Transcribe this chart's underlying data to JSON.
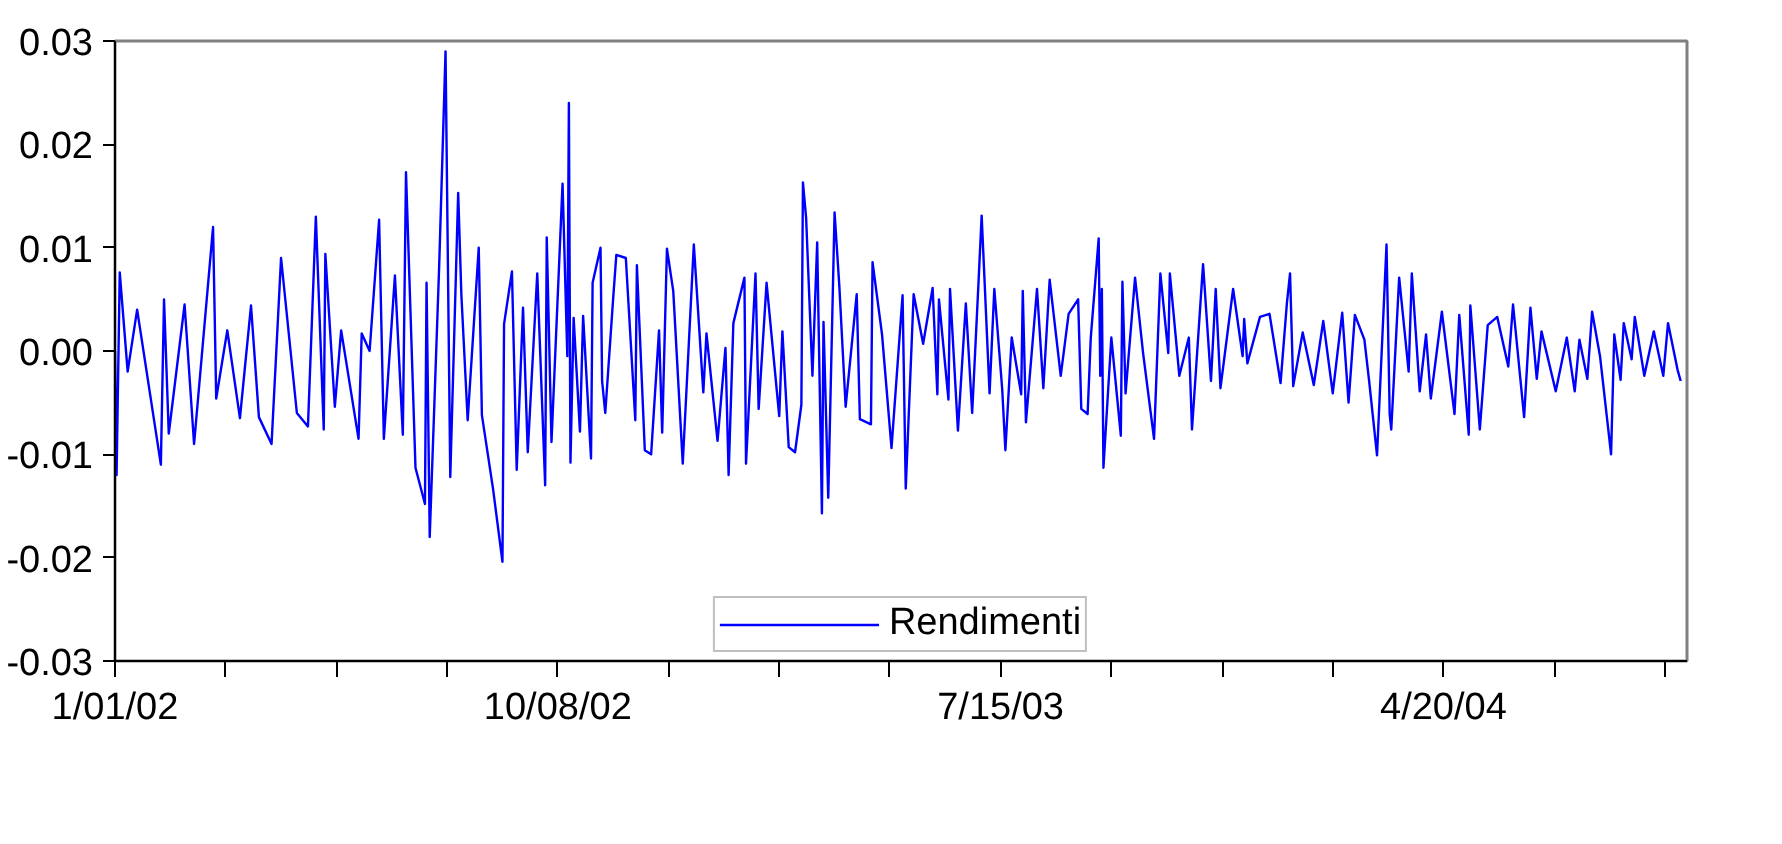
{
  "chart_data": {
    "type": "line",
    "xlim": [
      "2002-01-01",
      "2004-09-21"
    ],
    "xticks": [
      {
        "value": "2002-01-01",
        "label": "1/01/02"
      },
      {
        "value": "2002-03-12",
        "label": null
      },
      {
        "value": "2002-05-21",
        "label": null
      },
      {
        "value": "2002-07-30",
        "label": null
      },
      {
        "value": "2002-10-08",
        "label": "10/08/02"
      },
      {
        "value": "2002-12-17",
        "label": null
      },
      {
        "value": "2003-02-25",
        "label": null
      },
      {
        "value": "2003-05-06",
        "label": null
      },
      {
        "value": "2003-07-15",
        "label": "7/15/03"
      },
      {
        "value": "2003-09-23",
        "label": null
      },
      {
        "value": "2003-12-02",
        "label": null
      },
      {
        "value": "2004-02-10",
        "label": null
      },
      {
        "value": "2004-04-20",
        "label": "4/20/04"
      },
      {
        "value": "2004-06-29",
        "label": null
      },
      {
        "value": "2004-09-07",
        "label": null
      }
    ],
    "ylim": [
      -0.03,
      0.03
    ],
    "yticks": [
      -0.03,
      -0.02,
      -0.01,
      {
        "value": 0,
        "label": "0.00"
      },
      0.01,
      0.02,
      0.03
    ],
    "legend": "bottom",
    "series": [
      {
        "name": "Rendimenti",
        "color": "#0000ff",
        "x": [
          "2002-01-01",
          "2002-01-02",
          "2002-01-04",
          "2002-01-09",
          "2002-01-15",
          "2002-01-30",
          "2002-02-01",
          "2002-02-04",
          "2002-02-14",
          "2002-02-20",
          "2002-03-04",
          "2002-03-06",
          "2002-03-13",
          "2002-03-21",
          "2002-03-28",
          "2002-04-02",
          "2002-04-10",
          "2002-04-16",
          "2002-04-26",
          "2002-05-03",
          "2002-05-08",
          "2002-05-13",
          "2002-05-14",
          "2002-05-20",
          "2002-05-24",
          "2002-06-04",
          "2002-06-06",
          "2002-06-11",
          "2002-06-17",
          "2002-06-20",
          "2002-06-27",
          "2002-07-02",
          "2002-07-04",
          "2002-07-10",
          "2002-07-16",
          "2002-07-17",
          "2002-07-19",
          "2002-07-25",
          "2002-07-29",
          "2002-08-01",
          "2002-08-06",
          "2002-08-08",
          "2002-08-12",
          "2002-08-19",
          "2002-08-21",
          "2002-08-28",
          "2002-09-03",
          "2002-09-04",
          "2002-09-09",
          "2002-09-12",
          "2002-09-16",
          "2002-09-19",
          "2002-09-25",
          "2002-09-30",
          "2002-10-01",
          "2002-10-04",
          "2002-10-11",
          "2002-10-14",
          "2002-10-15",
          "2002-10-16",
          "2002-10-18",
          "2002-10-22",
          "2002-10-24",
          "2002-10-29",
          "2002-10-30",
          "2002-11-04",
          "2002-11-05",
          "2002-11-07",
          "2002-11-12",
          "2002-11-14",
          "2002-11-20",
          "2002-11-26",
          "2002-11-27",
          "2002-12-02",
          "2002-12-06",
          "2002-12-11",
          "2002-12-13",
          "2002-12-16",
          "2002-12-20",
          "2002-12-26",
          "2003-01-02",
          "2003-01-08",
          "2003-01-10",
          "2003-01-17",
          "2003-01-22",
          "2003-01-24",
          "2003-01-27",
          "2003-02-03",
          "2003-02-04",
          "2003-02-10",
          "2003-02-12",
          "2003-02-17",
          "2003-02-25",
          "2003-02-27",
          "2003-03-03",
          "2003-03-07",
          "2003-03-11",
          "2003-03-12",
          "2003-03-14",
          "2003-03-18",
          "2003-03-21",
          "2003-03-24",
          "2003-03-25",
          "2003-03-28",
          "2003-04-01",
          "2003-04-04",
          "2003-04-08",
          "2003-04-15",
          "2003-04-17",
          "2003-04-24",
          "2003-04-25",
          "2003-05-01",
          "2003-05-07",
          "2003-05-14",
          "2003-05-16",
          "2003-05-21",
          "2003-05-27",
          "2003-06-02",
          "2003-06-05",
          "2003-06-06",
          "2003-06-12",
          "2003-06-13",
          "2003-06-18",
          "2003-06-23",
          "2003-06-27",
          "2003-07-01",
          "2003-07-03",
          "2003-07-08",
          "2003-07-11",
          "2003-07-16",
          "2003-07-18",
          "2003-07-22",
          "2003-07-28",
          "2003-07-29",
          "2003-07-31",
          "2003-08-07",
          "2003-08-11",
          "2003-08-15",
          "2003-08-22",
          "2003-08-27",
          "2003-09-02",
          "2003-09-04",
          "2003-09-08",
          "2003-09-10",
          "2003-09-15",
          "2003-09-16",
          "2003-09-17",
          "2003-09-18",
          "2003-09-23",
          "2003-09-29",
          "2003-09-30",
          "2003-10-02",
          "2003-10-08",
          "2003-10-13",
          "2003-10-20",
          "2003-10-24",
          "2003-10-29",
          "2003-10-30",
          "2003-11-05",
          "2003-11-11",
          "2003-11-13",
          "2003-11-20",
          "2003-11-25",
          "2003-11-28",
          "2003-12-01",
          "2003-12-09",
          "2003-12-15",
          "2003-12-16",
          "2003-12-18",
          "2003-12-26",
          "2004-01-01",
          "2004-01-08",
          "2004-01-12",
          "2004-01-14",
          "2004-01-16",
          "2004-01-22",
          "2004-01-29",
          "2004-02-04",
          "2004-02-10",
          "2004-02-16",
          "2004-02-20",
          "2004-02-24",
          "2004-03-01",
          "2004-03-04",
          "2004-03-09",
          "2004-03-15",
          "2004-03-17",
          "2004-03-18",
          "2004-03-23",
          "2004-03-29",
          "2004-03-31",
          "2004-04-05",
          "2004-04-09",
          "2004-04-12",
          "2004-04-19",
          "2004-04-27",
          "2004-04-30",
          "2004-05-06",
          "2004-05-07",
          "2004-05-13",
          "2004-05-18",
          "2004-05-24",
          "2004-05-31",
          "2004-06-03",
          "2004-06-10",
          "2004-06-14",
          "2004-06-18",
          "2004-06-21",
          "2004-06-30",
          "2004-07-07",
          "2004-07-12",
          "2004-07-15",
          "2004-07-20",
          "2004-07-23",
          "2004-07-28",
          "2004-08-04",
          "2004-08-06",
          "2004-08-10",
          "2004-08-12",
          "2004-08-17",
          "2004-08-19",
          "2004-08-25",
          "2004-08-31",
          "2004-09-06",
          "2004-09-09",
          "2004-09-15",
          "2004-09-17"
        ],
        "values": [
          0.0,
          -0.012,
          0.0076,
          -0.002,
          0.004,
          -0.011,
          0.005,
          -0.008,
          0.0045,
          -0.009,
          0.012,
          -0.0046,
          0.002,
          -0.0065,
          0.0044,
          -0.0064,
          -0.009,
          0.009,
          -0.006,
          -0.0073,
          0.013,
          -0.0076,
          0.0094,
          -0.0054,
          0.002,
          -0.0085,
          0.0017,
          0.0,
          0.0127,
          -0.0085,
          0.0073,
          -0.0081,
          0.0173,
          -0.0113,
          -0.0148,
          0.0066,
          -0.018,
          0.0083,
          0.029,
          -0.0122,
          0.0153,
          0.0055,
          -0.0067,
          0.01,
          -0.0062,
          -0.0133,
          -0.0204,
          0.0026,
          0.0077,
          -0.0115,
          0.0042,
          -0.0098,
          0.0075,
          -0.013,
          0.011,
          -0.0088,
          0.0162,
          -0.0005,
          0.024,
          -0.0108,
          0.0032,
          -0.0078,
          0.0034,
          -0.0104,
          0.0066,
          0.01,
          -0.0029,
          -0.006,
          0.0051,
          0.0093,
          0.009,
          -0.0067,
          0.0083,
          -0.0096,
          -0.01,
          0.002,
          -0.0079,
          0.0099,
          0.0058,
          -0.0109,
          0.0103,
          -0.004,
          0.0017,
          -0.0087,
          0.0003,
          -0.012,
          0.0027,
          0.0071,
          -0.0109,
          0.0075,
          -0.0056,
          0.0066,
          -0.0063,
          0.0019,
          -0.0093,
          -0.0098,
          -0.0052,
          0.0163,
          0.0129,
          -0.0024,
          0.0105,
          -0.0157,
          0.0028,
          -0.0142,
          0.0134,
          0.0063,
          -0.0054,
          0.0055,
          -0.0066,
          -0.0071,
          0.0086,
          0.0016,
          -0.0094,
          0.0054,
          -0.0133,
          0.0055,
          0.0007,
          0.0061,
          -0.0042,
          0.005,
          -0.0047,
          0.006,
          -0.0077,
          0.0046,
          -0.006,
          0.0066,
          0.0131,
          -0.0041,
          0.006,
          -0.0037,
          -0.0096,
          0.0013,
          -0.0042,
          0.0058,
          -0.0069,
          0.006,
          -0.0036,
          0.0069,
          -0.0024,
          0.0036,
          0.005,
          -0.0056,
          -0.0061,
          0.0013,
          0.0109,
          -0.0024,
          0.006,
          -0.0113,
          0.0013,
          -0.0082,
          0.0067,
          -0.0041,
          0.0071,
          -0.0001,
          -0.0085,
          0.0075,
          -0.0002,
          0.0075,
          -0.0024,
          0.0013,
          -0.0076,
          0.0084,
          -0.0029,
          0.006,
          -0.0036,
          0.006,
          -0.0005,
          0.0031,
          -0.0012,
          0.0033,
          0.0036,
          -0.0031,
          0.0046,
          0.0075,
          -0.0034,
          0.0018,
          -0.0033,
          0.0029,
          -0.0041,
          0.0037,
          -0.005,
          0.0035,
          0.0011,
          -0.0029,
          -0.0101,
          0.0103,
          -0.0061,
          -0.0076,
          0.0071,
          -0.002,
          0.0075,
          -0.0039,
          0.0016,
          -0.0046,
          0.0038,
          -0.0061,
          0.0035,
          -0.0081,
          0.0044,
          -0.0076,
          0.0025,
          0.0033,
          -0.0015,
          0.0045,
          -0.0064,
          0.0042,
          -0.0027,
          0.0019,
          -0.0039,
          0.0013,
          -0.0039,
          0.0011,
          -0.0027,
          0.0038,
          -0.0005,
          -0.01,
          0.0016,
          -0.0028,
          0.0027,
          -0.0008,
          0.0033,
          -0.0024,
          0.0019,
          -0.0024,
          0.0027,
          -0.0018,
          -0.0029
        ]
      }
    ]
  }
}
